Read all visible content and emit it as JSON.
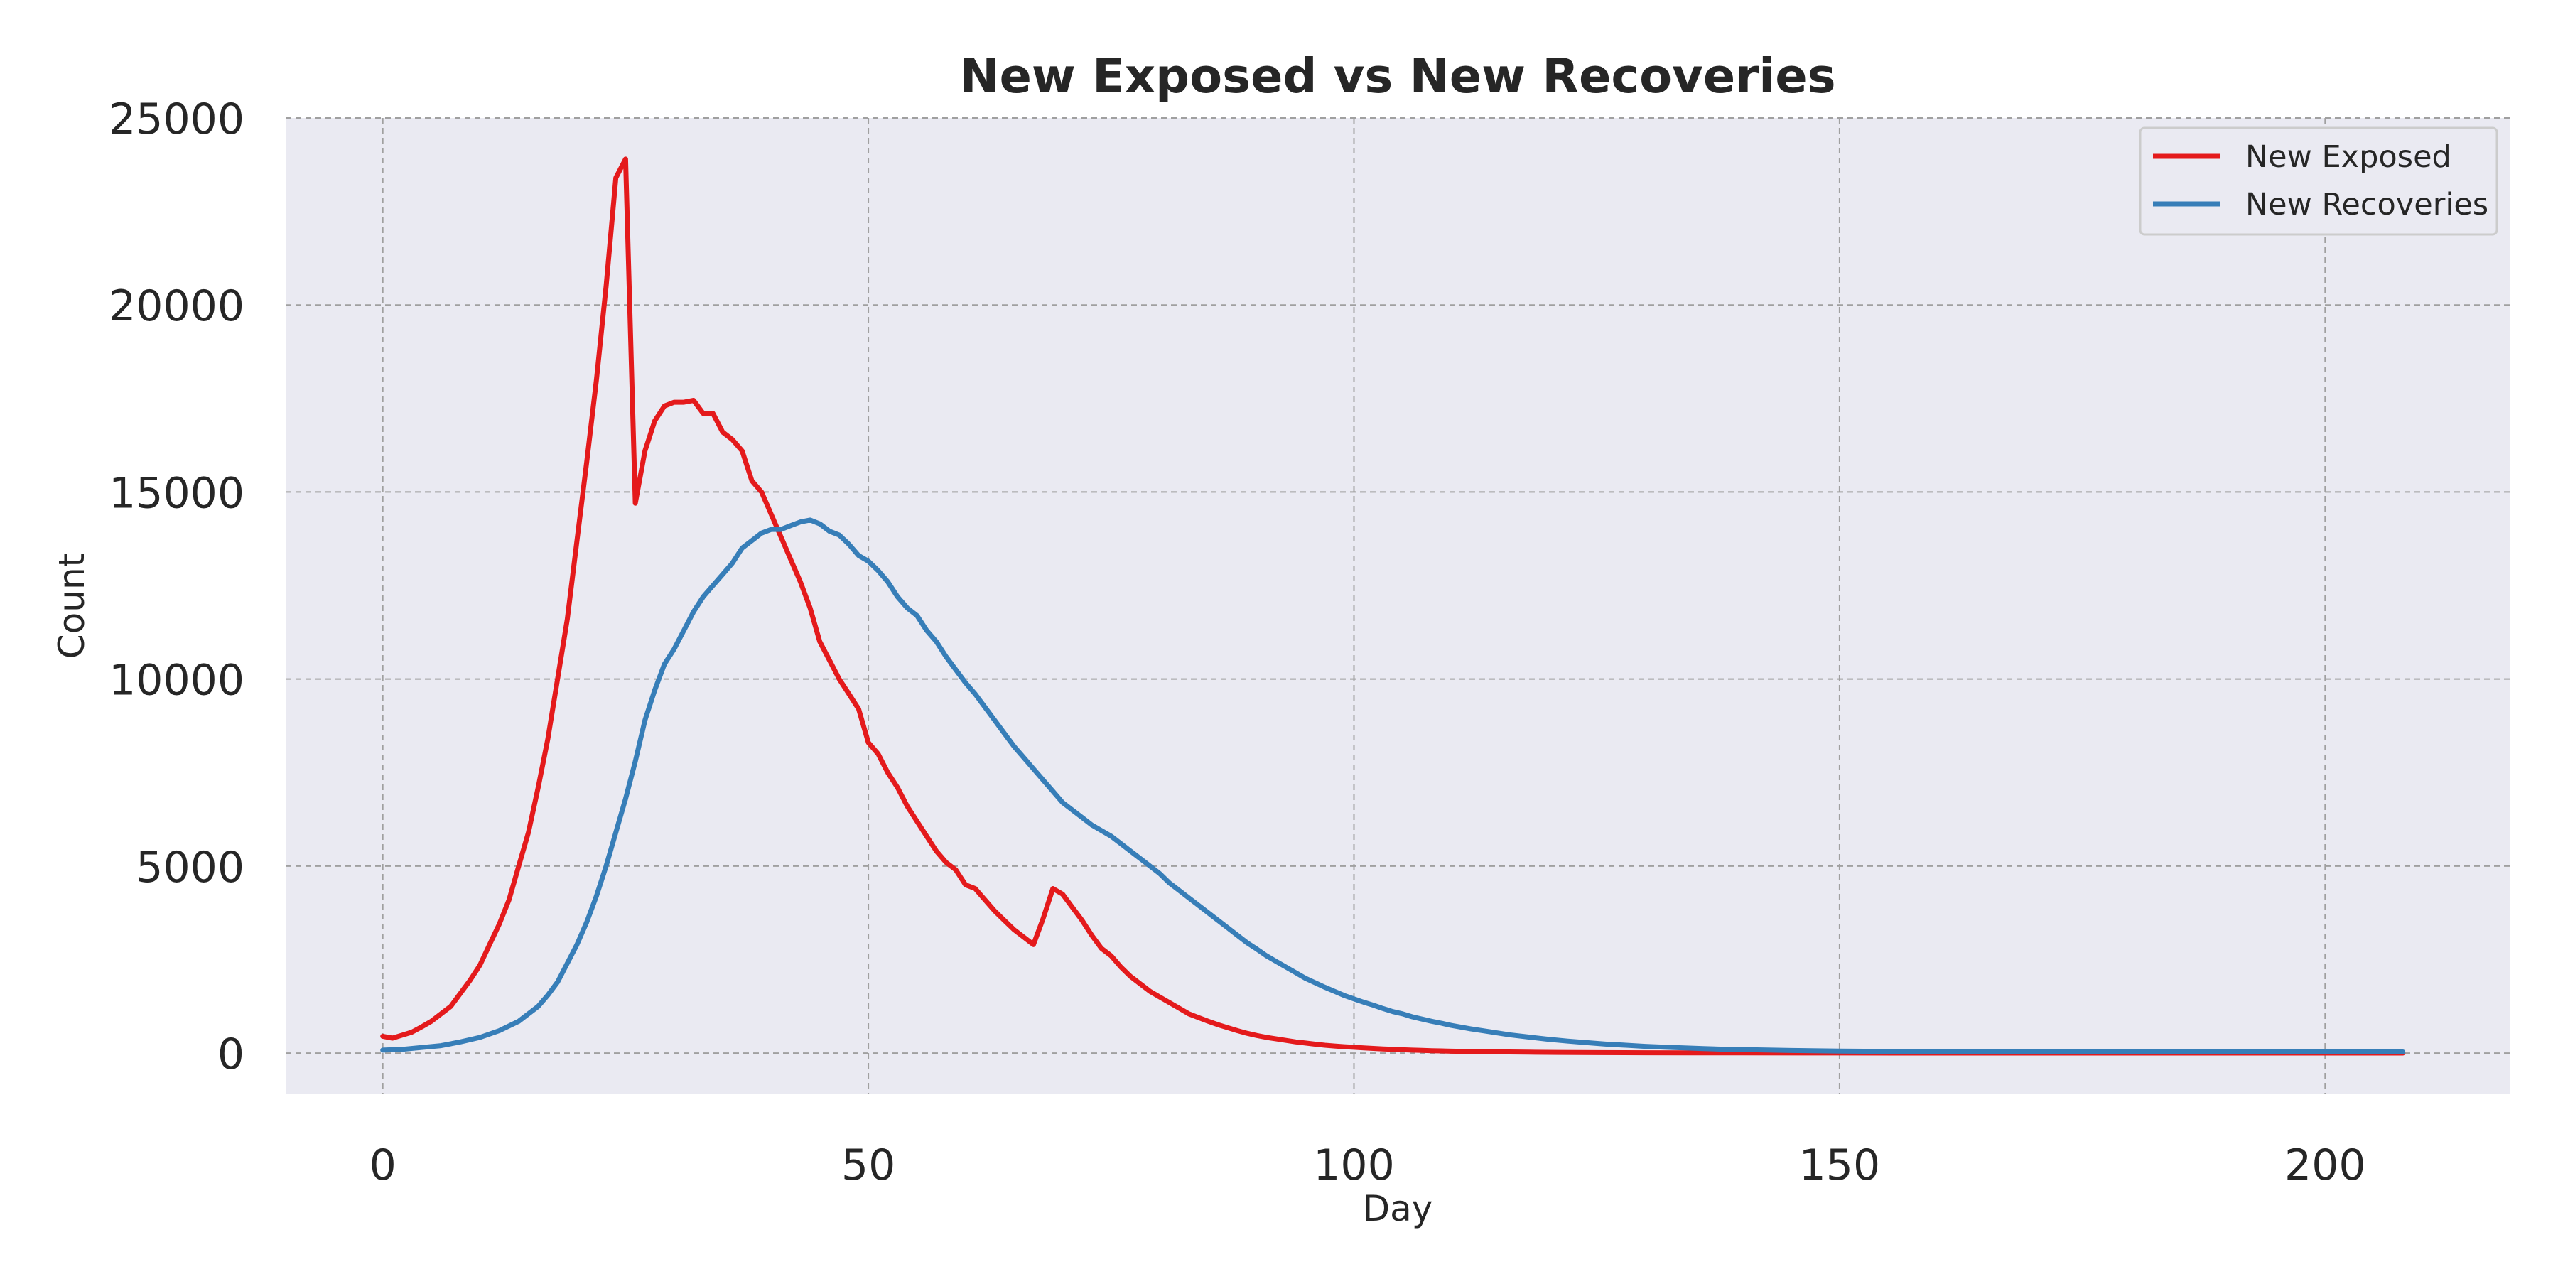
{
  "chart_data": {
    "type": "line",
    "title": "New Exposed vs New Recoveries",
    "xlabel": "Day",
    "ylabel": "Count",
    "xlim": [
      -10,
      219
    ],
    "ylim": [
      -1100,
      25000
    ],
    "x_ticks": [
      0,
      50,
      100,
      150,
      200
    ],
    "y_ticks": [
      0,
      5000,
      10000,
      15000,
      20000,
      25000
    ],
    "grid": true,
    "legend_position": "top-right",
    "colors": {
      "background": "#EAEAF2",
      "grid": "#A0A0A0"
    },
    "series": [
      {
        "name": "New Exposed",
        "color": "#E41A1C",
        "points": [
          [
            0,
            450
          ],
          [
            1,
            400
          ],
          [
            2,
            480
          ],
          [
            3,
            560
          ],
          [
            4,
            700
          ],
          [
            5,
            850
          ],
          [
            6,
            1050
          ],
          [
            7,
            1250
          ],
          [
            8,
            1600
          ],
          [
            9,
            1950
          ],
          [
            10,
            2350
          ],
          [
            11,
            2900
          ],
          [
            12,
            3450
          ],
          [
            13,
            4100
          ],
          [
            14,
            5000
          ],
          [
            15,
            5900
          ],
          [
            16,
            7100
          ],
          [
            17,
            8400
          ],
          [
            18,
            10000
          ],
          [
            19,
            11600
          ],
          [
            20,
            13700
          ],
          [
            21,
            15800
          ],
          [
            22,
            18000
          ],
          [
            23,
            20500
          ],
          [
            24,
            23400
          ],
          [
            25,
            23900
          ],
          [
            26,
            14700
          ],
          [
            27,
            16100
          ],
          [
            28,
            16900
          ],
          [
            29,
            17300
          ],
          [
            30,
            17400
          ],
          [
            31,
            17400
          ],
          [
            32,
            17450
          ],
          [
            33,
            17100
          ],
          [
            34,
            17100
          ],
          [
            35,
            16600
          ],
          [
            36,
            16400
          ],
          [
            37,
            16100
          ],
          [
            38,
            15300
          ],
          [
            39,
            15000
          ],
          [
            40,
            14400
          ],
          [
            41,
            13800
          ],
          [
            42,
            13200
          ],
          [
            43,
            12600
          ],
          [
            44,
            11900
          ],
          [
            45,
            11000
          ],
          [
            46,
            10500
          ],
          [
            47,
            10000
          ],
          [
            48,
            9600
          ],
          [
            49,
            9200
          ],
          [
            50,
            8300
          ],
          [
            51,
            8000
          ],
          [
            52,
            7500
          ],
          [
            53,
            7100
          ],
          [
            54,
            6600
          ],
          [
            55,
            6200
          ],
          [
            56,
            5800
          ],
          [
            57,
            5400
          ],
          [
            58,
            5100
          ],
          [
            59,
            4900
          ],
          [
            60,
            4500
          ],
          [
            61,
            4400
          ],
          [
            62,
            4100
          ],
          [
            63,
            3800
          ],
          [
            64,
            3550
          ],
          [
            65,
            3300
          ],
          [
            66,
            3100
          ],
          [
            67,
            2900
          ],
          [
            68,
            3600
          ],
          [
            69,
            4400
          ],
          [
            70,
            4250
          ],
          [
            71,
            3900
          ],
          [
            72,
            3550
          ],
          [
            73,
            3150
          ],
          [
            74,
            2800
          ],
          [
            75,
            2600
          ],
          [
            76,
            2300
          ],
          [
            77,
            2050
          ],
          [
            78,
            1850
          ],
          [
            79,
            1650
          ],
          [
            80,
            1500
          ],
          [
            81,
            1350
          ],
          [
            82,
            1200
          ],
          [
            83,
            1050
          ],
          [
            84,
            950
          ],
          [
            85,
            850
          ],
          [
            86,
            760
          ],
          [
            87,
            680
          ],
          [
            88,
            600
          ],
          [
            89,
            530
          ],
          [
            90,
            470
          ],
          [
            91,
            420
          ],
          [
            92,
            380
          ],
          [
            93,
            340
          ],
          [
            94,
            300
          ],
          [
            95,
            270
          ],
          [
            96,
            240
          ],
          [
            97,
            210
          ],
          [
            98,
            190
          ],
          [
            99,
            170
          ],
          [
            100,
            155
          ],
          [
            101,
            140
          ],
          [
            102,
            125
          ],
          [
            103,
            112
          ],
          [
            104,
            100
          ],
          [
            105,
            90
          ],
          [
            106,
            80
          ],
          [
            107,
            72
          ],
          [
            108,
            65
          ],
          [
            109,
            58
          ],
          [
            110,
            52
          ],
          [
            112,
            42
          ],
          [
            115,
            32
          ],
          [
            118,
            24
          ],
          [
            121,
            18
          ],
          [
            125,
            13
          ],
          [
            130,
            9
          ],
          [
            135,
            6
          ],
          [
            140,
            5
          ],
          [
            150,
            3
          ],
          [
            160,
            2
          ],
          [
            170,
            2
          ],
          [
            180,
            1
          ],
          [
            190,
            1
          ],
          [
            200,
            1
          ],
          [
            208,
            1
          ]
        ]
      },
      {
        "name": "New Recoveries",
        "color": "#377EB8",
        "points": [
          [
            0,
            80
          ],
          [
            2,
            100
          ],
          [
            4,
            150
          ],
          [
            6,
            200
          ],
          [
            8,
            300
          ],
          [
            10,
            420
          ],
          [
            12,
            600
          ],
          [
            14,
            850
          ],
          [
            16,
            1250
          ],
          [
            17,
            1550
          ],
          [
            18,
            1900
          ],
          [
            19,
            2400
          ],
          [
            20,
            2900
          ],
          [
            21,
            3500
          ],
          [
            22,
            4200
          ],
          [
            23,
            5000
          ],
          [
            24,
            5900
          ],
          [
            25,
            6800
          ],
          [
            26,
            7800
          ],
          [
            27,
            8900
          ],
          [
            28,
            9700
          ],
          [
            29,
            10400
          ],
          [
            30,
            10800
          ],
          [
            31,
            11300
          ],
          [
            32,
            11800
          ],
          [
            33,
            12200
          ],
          [
            34,
            12500
          ],
          [
            35,
            12800
          ],
          [
            36,
            13100
          ],
          [
            37,
            13500
          ],
          [
            38,
            13700
          ],
          [
            39,
            13900
          ],
          [
            40,
            14000
          ],
          [
            41,
            14000
          ],
          [
            42,
            14100
          ],
          [
            43,
            14200
          ],
          [
            44,
            14250
          ],
          [
            45,
            14150
          ],
          [
            46,
            13950
          ],
          [
            47,
            13850
          ],
          [
            48,
            13600
          ],
          [
            49,
            13300
          ],
          [
            50,
            13150
          ],
          [
            51,
            12900
          ],
          [
            52,
            12600
          ],
          [
            53,
            12200
          ],
          [
            54,
            11900
          ],
          [
            55,
            11700
          ],
          [
            56,
            11300
          ],
          [
            57,
            11000
          ],
          [
            58,
            10600
          ],
          [
            59,
            10250
          ],
          [
            60,
            9900
          ],
          [
            61,
            9600
          ],
          [
            62,
            9250
          ],
          [
            63,
            8900
          ],
          [
            64,
            8550
          ],
          [
            65,
            8200
          ],
          [
            66,
            7900
          ],
          [
            67,
            7600
          ],
          [
            68,
            7300
          ],
          [
            69,
            7000
          ],
          [
            70,
            6700
          ],
          [
            71,
            6500
          ],
          [
            72,
            6300
          ],
          [
            73,
            6100
          ],
          [
            74,
            5950
          ],
          [
            75,
            5800
          ],
          [
            76,
            5600
          ],
          [
            77,
            5400
          ],
          [
            78,
            5200
          ],
          [
            79,
            5000
          ],
          [
            80,
            4800
          ],
          [
            81,
            4550
          ],
          [
            82,
            4350
          ],
          [
            83,
            4150
          ],
          [
            84,
            3950
          ],
          [
            85,
            3750
          ],
          [
            86,
            3550
          ],
          [
            87,
            3350
          ],
          [
            88,
            3150
          ],
          [
            89,
            2950
          ],
          [
            90,
            2780
          ],
          [
            91,
            2600
          ],
          [
            92,
            2450
          ],
          [
            93,
            2300
          ],
          [
            94,
            2150
          ],
          [
            95,
            2000
          ],
          [
            96,
            1880
          ],
          [
            97,
            1760
          ],
          [
            98,
            1650
          ],
          [
            99,
            1540
          ],
          [
            100,
            1450
          ],
          [
            101,
            1360
          ],
          [
            102,
            1280
          ],
          [
            103,
            1190
          ],
          [
            104,
            1110
          ],
          [
            105,
            1050
          ],
          [
            106,
            970
          ],
          [
            107,
            910
          ],
          [
            108,
            850
          ],
          [
            109,
            800
          ],
          [
            110,
            740
          ],
          [
            112,
            650
          ],
          [
            114,
            570
          ],
          [
            116,
            490
          ],
          [
            118,
            430
          ],
          [
            120,
            370
          ],
          [
            122,
            320
          ],
          [
            124,
            280
          ],
          [
            126,
            240
          ],
          [
            128,
            210
          ],
          [
            130,
            180
          ],
          [
            132,
            160
          ],
          [
            134,
            140
          ],
          [
            136,
            120
          ],
          [
            138,
            105
          ],
          [
            140,
            95
          ],
          [
            145,
            70
          ],
          [
            150,
            55
          ],
          [
            155,
            45
          ],
          [
            160,
            40
          ],
          [
            165,
            38
          ],
          [
            170,
            36
          ],
          [
            175,
            35
          ],
          [
            180,
            34
          ],
          [
            185,
            33
          ],
          [
            190,
            32
          ],
          [
            195,
            32
          ],
          [
            200,
            31
          ],
          [
            205,
            31
          ],
          [
            208,
            30
          ]
        ]
      }
    ]
  }
}
